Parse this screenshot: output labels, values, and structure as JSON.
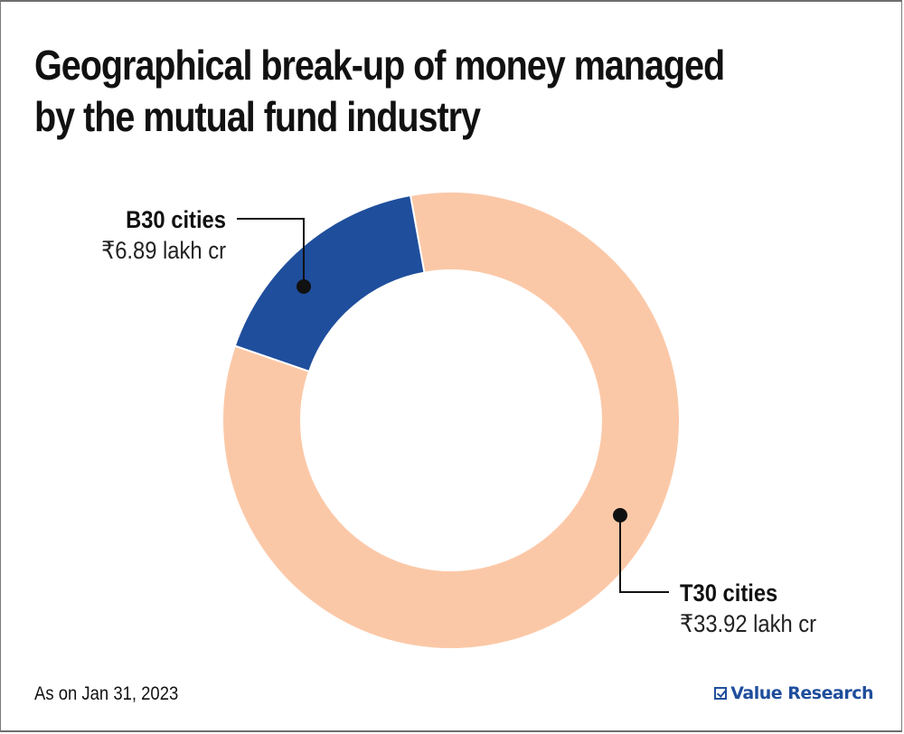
{
  "chart_data": {
    "type": "pie",
    "variant": "donut",
    "title": "Geographical break-up of money managed by the mutual fund industry",
    "title_lines": [
      "Geographical break-up of money managed",
      "by the mutual fund industry"
    ],
    "unit": "₹ lakh cr",
    "series": [
      {
        "name": "B30 cities",
        "value": 6.89,
        "value_label": "₹6.89 lakh cr",
        "color": "#1f4e9c"
      },
      {
        "name": "T30 cities",
        "value": 33.92,
        "value_label": "₹33.92 lakh cr",
        "color": "#fbc8a7"
      }
    ],
    "start_angle_deg": -71,
    "direction": "clockwise",
    "legend": "none (callout labels)",
    "footnote": "As on Jan 31, 2023",
    "source": "Value Research"
  },
  "footer": {
    "note": "As on Jan 31, 2023",
    "brand": "Value Research",
    "brand_icon": "checkbox-icon"
  }
}
